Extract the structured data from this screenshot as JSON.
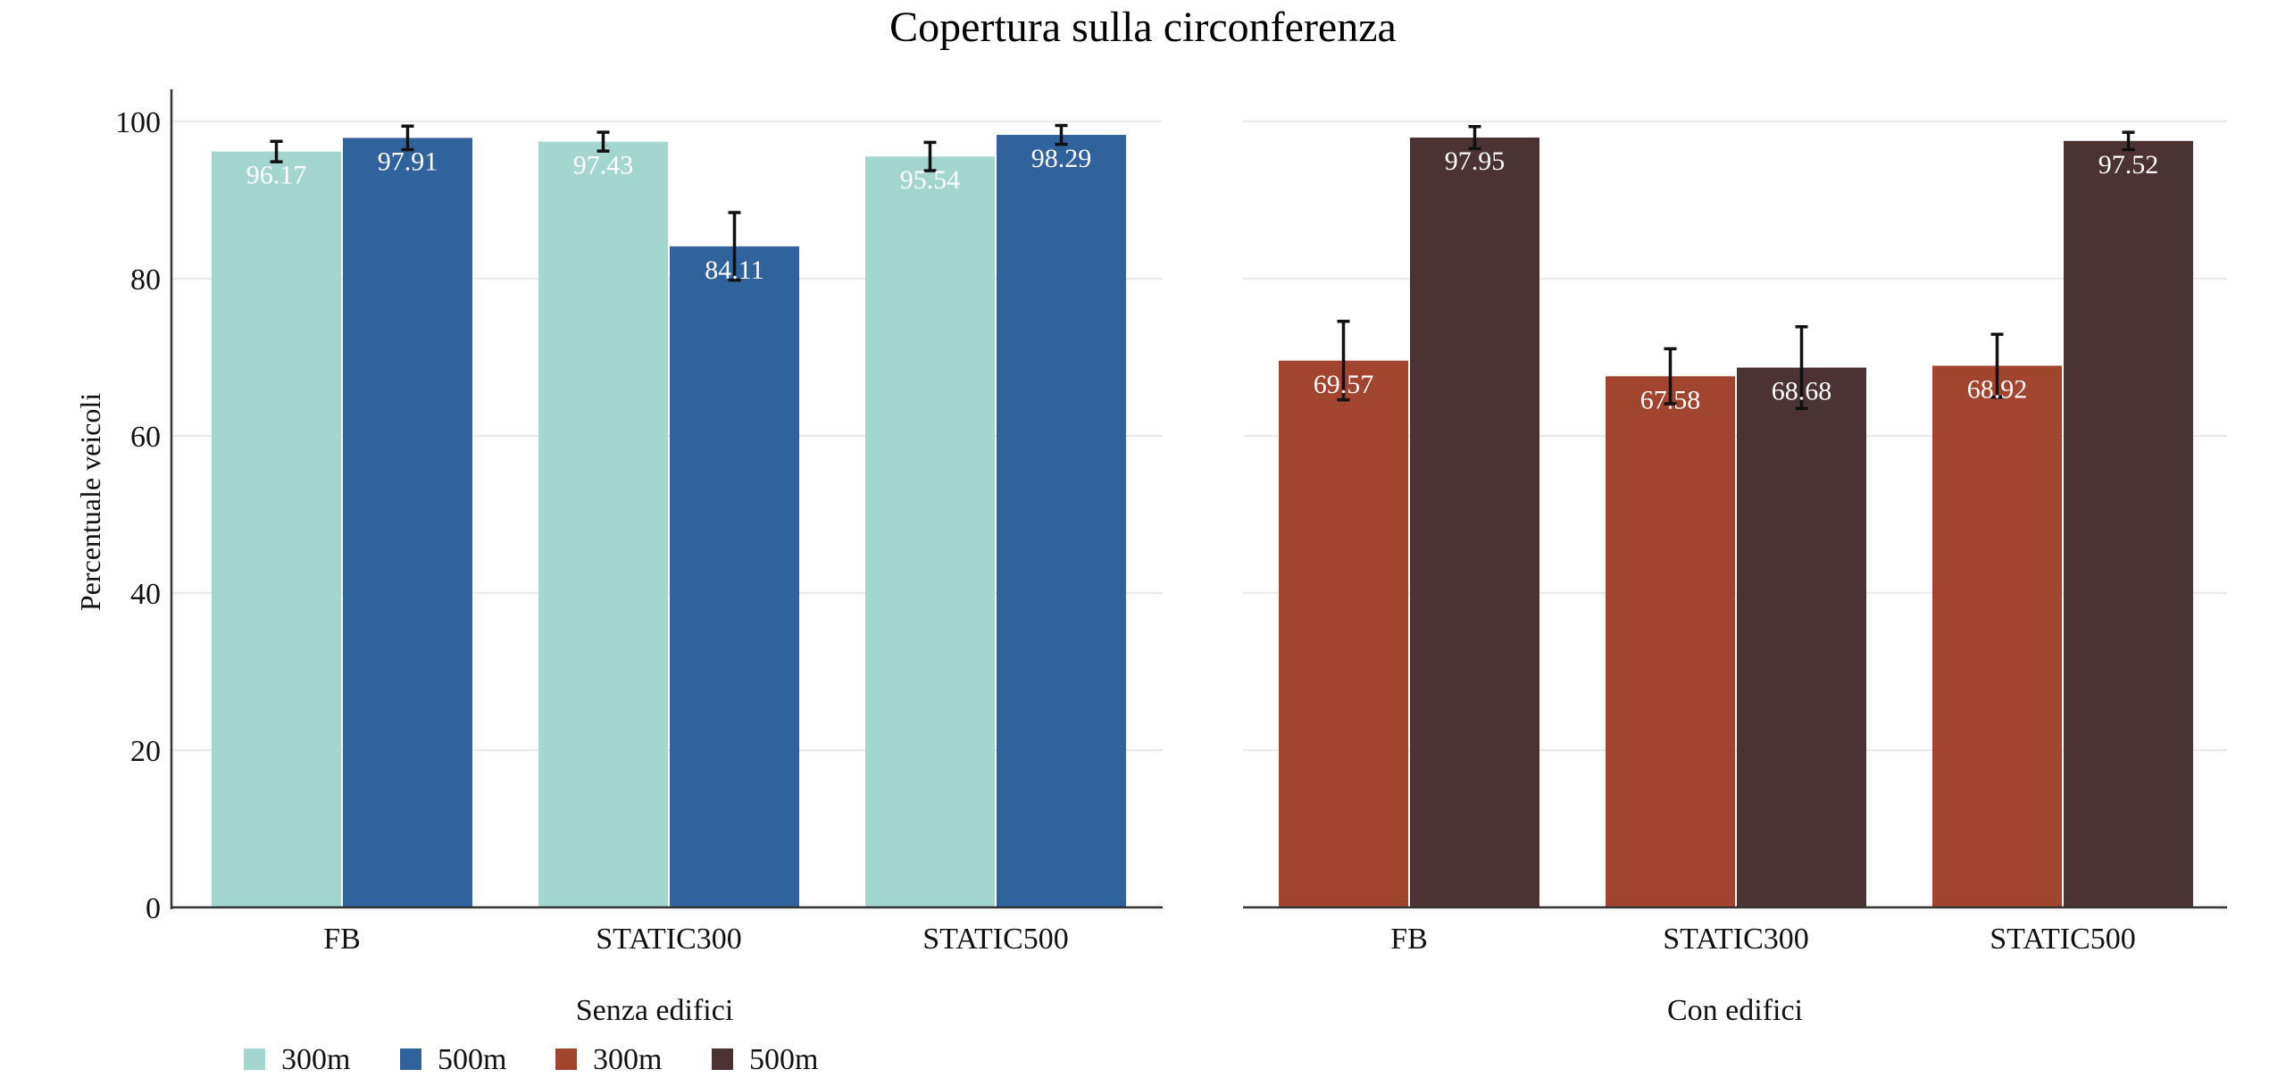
{
  "chart_data": {
    "type": "bar",
    "title": "Copertura sulla circonferenza",
    "ylabel": "Percentuale veicoli",
    "ylim": [
      0,
      105
    ],
    "yticks": [
      0,
      20,
      40,
      60,
      80,
      100
    ],
    "grid": true,
    "categories": [
      "FB",
      "STATIC300",
      "STATIC500"
    ],
    "panels": [
      {
        "label": "Senza edifici",
        "series": [
          {
            "name": "300m",
            "color": "#a2d6cf",
            "values": [
              96.17,
              97.43,
              95.54
            ],
            "err": [
              1.3,
              1.2,
              1.8
            ],
            "labels": [
              "96.17",
              "97.43",
              "95.54"
            ]
          },
          {
            "name": "500m",
            "color": "#30629c",
            "values": [
              97.91,
              84.11,
              98.29
            ],
            "err": [
              1.5,
              4.3,
              1.2
            ],
            "labels": [
              "97.91",
              "84.11",
              "98.29"
            ]
          }
        ]
      },
      {
        "label": "Con edifici",
        "series": [
          {
            "name": "300m",
            "color": "#a2452f",
            "values": [
              69.57,
              67.58,
              68.92
            ],
            "err": [
              5.0,
              3.5,
              4.0
            ],
            "labels": [
              "69.57",
              "67.58",
              "68.92"
            ]
          },
          {
            "name": "500m",
            "color": "#4b3333",
            "values": [
              97.95,
              68.68,
              97.52
            ],
            "err": [
              1.4,
              5.2,
              1.1
            ],
            "labels": [
              "97.95",
              "68.68",
              "97.52"
            ]
          }
        ]
      }
    ],
    "legend": {
      "position": "bottom-left",
      "items": [
        {
          "name": "300m",
          "color": "#a2d6cf"
        },
        {
          "name": "500m",
          "color": "#30629c"
        },
        {
          "name": "300m",
          "color": "#a2452f"
        },
        {
          "name": "500m",
          "color": "#4b3333"
        }
      ]
    }
  }
}
